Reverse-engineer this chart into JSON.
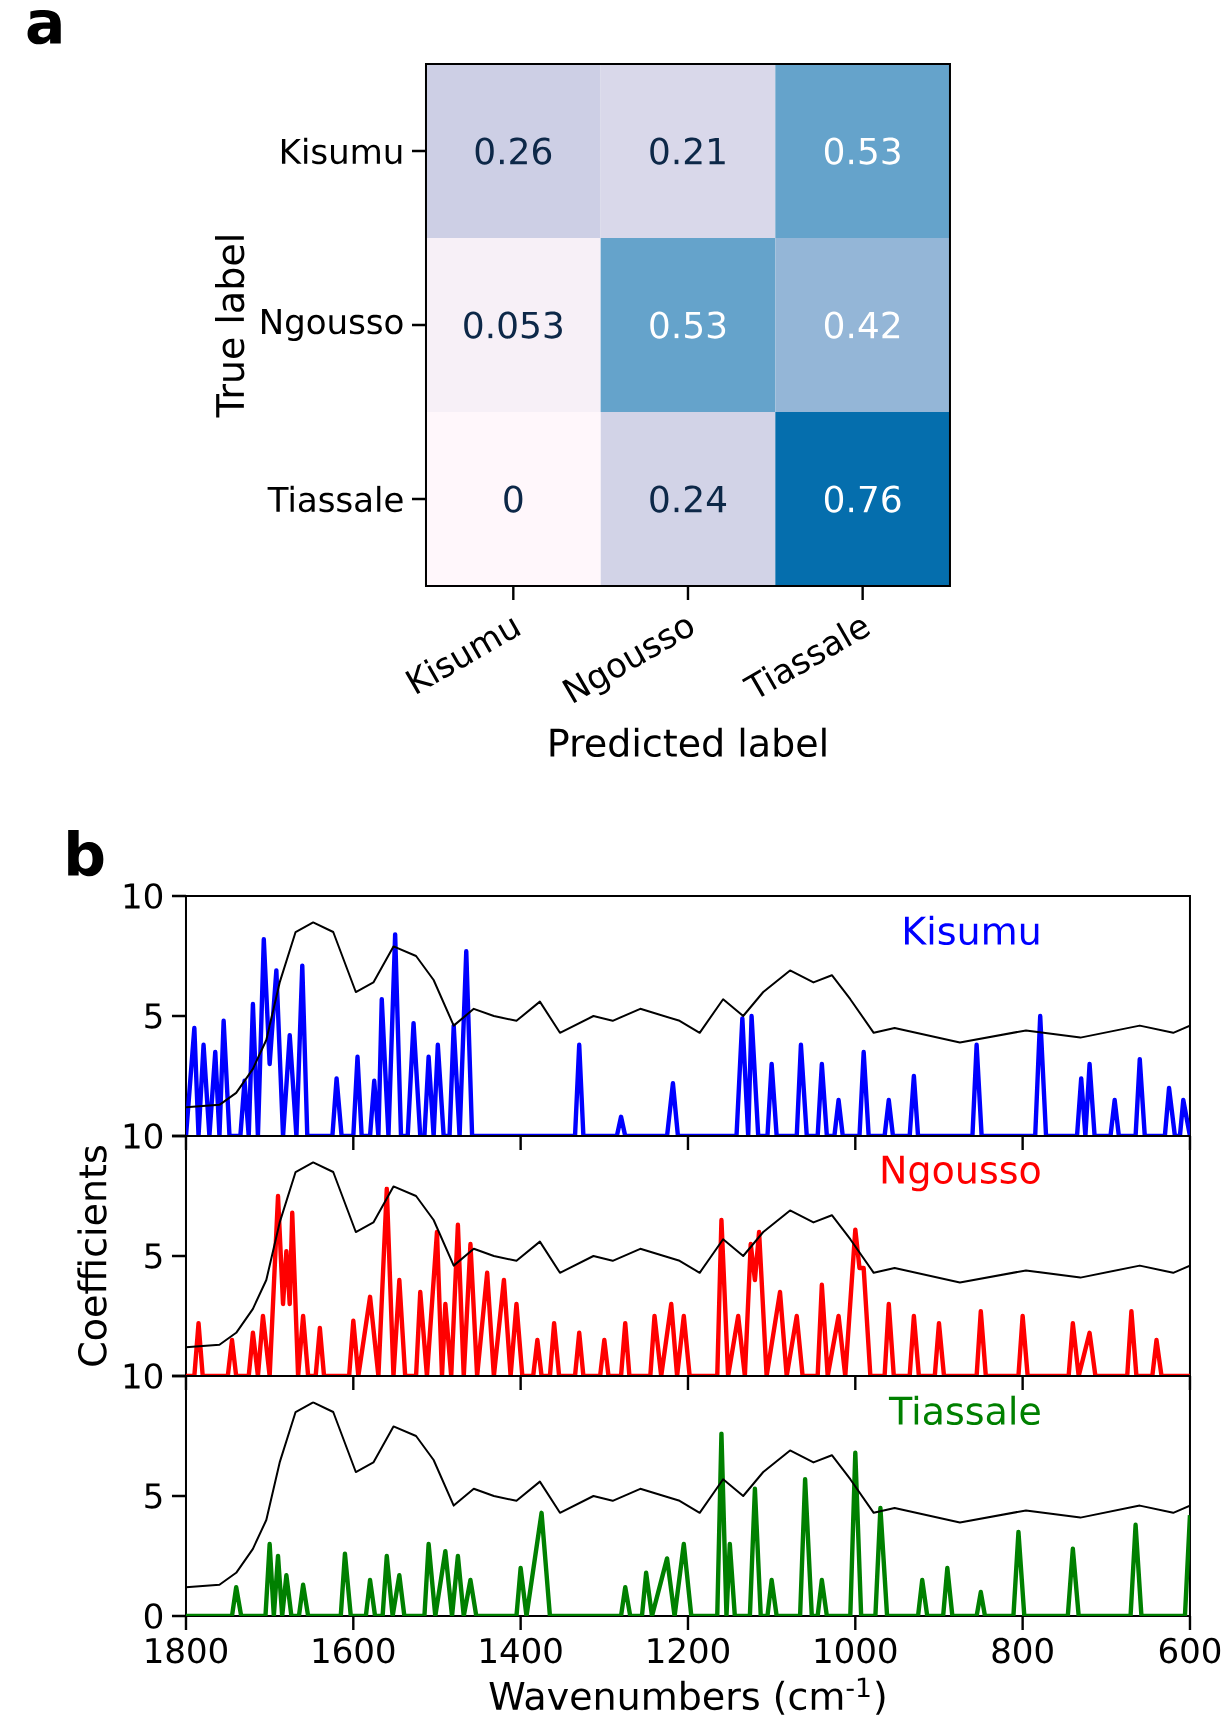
{
  "chart_data": [
    {
      "type": "heatmap",
      "title": "a",
      "xlabel": "Predicted label",
      "ylabel": "True label",
      "categories": [
        "Kisumu",
        "Ngousso",
        "Tiassale"
      ],
      "y_categories": [
        "Kisumu",
        "Ngousso",
        "Tiassale"
      ],
      "cells": [
        [
          0.26,
          0.21,
          0.53
        ],
        [
          0.053,
          0.53,
          0.42
        ],
        [
          0,
          0.24,
          0.76
        ]
      ],
      "data_labels": true
    },
    {
      "type": "line",
      "title": "b",
      "xlim": [
        1800,
        600
      ],
      "xticks": [
        1800,
        1600,
        1400,
        1200,
        1000,
        800,
        600
      ],
      "ylim": [
        0,
        10
      ],
      "yticks": [
        {
          "value": 0,
          "label": null
        },
        5,
        10
      ],
      "tick_labels": "y",
      "series": [
        {
          "name": "Kisumu",
          "color": "#0000ff",
          "x": [
            1800,
            1790,
            1785,
            1779,
            1772,
            1765,
            1760,
            1755,
            1748,
            1735,
            1730,
            1725,
            1720,
            1714,
            1707,
            1700,
            1692,
            1684,
            1676,
            1668,
            1661,
            1655,
            1625,
            1620,
            1614,
            1600,
            1595,
            1590,
            1580,
            1575,
            1570,
            1566,
            1558,
            1550,
            1543,
            1535,
            1528,
            1520,
            1515,
            1510,
            1504,
            1499,
            1492,
            1485,
            1480,
            1473,
            1465,
            1458,
            1335,
            1330,
            1325,
            1285,
            1280,
            1275,
            1225,
            1218,
            1212,
            1142,
            1135,
            1128,
            1124,
            1116,
            1105,
            1100,
            1094,
            1070,
            1065,
            1058,
            1045,
            1040,
            1034,
            1025,
            1020,
            1015,
            995,
            990,
            984,
            965,
            960,
            955,
            935,
            930,
            925,
            860,
            855,
            849,
            785,
            779,
            772,
            735,
            730,
            725,
            720,
            714,
            695,
            690,
            685,
            665,
            660,
            654,
            630,
            625,
            618,
            612,
            608,
            600
          ],
          "values": [
            0,
            4.5,
            0,
            3.8,
            0,
            3.5,
            0,
            4.8,
            0,
            0,
            2.3,
            0,
            5.5,
            0,
            8.2,
            3,
            6.9,
            0,
            4.2,
            0,
            7.1,
            0,
            0,
            2.4,
            0,
            0,
            3.3,
            0,
            0,
            2.3,
            0,
            5.7,
            0,
            8.4,
            0,
            0,
            4.7,
            0,
            0,
            3.3,
            0,
            3.8,
            0,
            0,
            4.6,
            0,
            7.7,
            0,
            0,
            3.8,
            0,
            0,
            0.8,
            0,
            0,
            2.2,
            0,
            0,
            4.9,
            0,
            5.0,
            0,
            0,
            3.0,
            0,
            0,
            3.8,
            0,
            0,
            3.0,
            0,
            0,
            1.5,
            0,
            0,
            3.5,
            0,
            0,
            1.5,
            0,
            0,
            2.5,
            0,
            0,
            3.8,
            0,
            0,
            5.0,
            0,
            0,
            2.4,
            0,
            3.0,
            0,
            0,
            1.5,
            0,
            0,
            3.2,
            0,
            0,
            2.0,
            0,
            0,
            1.5,
            0
          ]
        },
        {
          "color": "#000000",
          "x": [
            1800,
            1760,
            1740,
            1720,
            1704,
            1688,
            1669,
            1648,
            1624,
            1597,
            1576,
            1552,
            1525,
            1504,
            1480,
            1456,
            1432,
            1405,
            1377,
            1353,
            1313,
            1290,
            1257,
            1210,
            1186,
            1158,
            1134,
            1110,
            1078,
            1050,
            1028,
            1006,
            978,
            953,
            875,
            796,
            731,
            660,
            620,
            600
          ],
          "values": [
            1.2,
            1.3,
            1.8,
            2.8,
            4.0,
            6.4,
            8.5,
            8.9,
            8.5,
            6.0,
            6.4,
            7.9,
            7.5,
            6.5,
            4.6,
            5.3,
            5.0,
            4.8,
            5.6,
            4.3,
            5.0,
            4.8,
            5.3,
            4.8,
            4.3,
            5.7,
            5.0,
            6.0,
            6.9,
            6.4,
            6.7,
            5.7,
            4.3,
            4.5,
            3.9,
            4.4,
            4.1,
            4.6,
            4.3,
            4.6
          ]
        }
      ]
    },
    {
      "type": "line",
      "ylabel": "Coefficients",
      "xlim": [
        1800,
        600
      ],
      "xticks": [
        1800,
        1600,
        1400,
        1200,
        1000,
        800,
        600
      ],
      "ylim": [
        0,
        10
      ],
      "yticks": [
        {
          "value": 0,
          "label": null
        },
        5,
        10
      ],
      "tick_labels": "y",
      "series": [
        {
          "name": "Ngousso",
          "color": "#ff0000",
          "x": [
            1800,
            1790,
            1785,
            1780,
            1750,
            1745,
            1740,
            1725,
            1720,
            1714,
            1708,
            1700,
            1690,
            1684,
            1680,
            1676,
            1673,
            1666,
            1660,
            1654,
            1645,
            1640,
            1635,
            1605,
            1600,
            1594,
            1580,
            1570,
            1560,
            1552,
            1545,
            1538,
            1525,
            1520,
            1512,
            1500,
            1494,
            1490,
            1483,
            1475,
            1468,
            1460,
            1452,
            1440,
            1432,
            1420,
            1412,
            1405,
            1398,
            1385,
            1380,
            1375,
            1365,
            1360,
            1354,
            1335,
            1330,
            1325,
            1305,
            1300,
            1295,
            1280,
            1275,
            1270,
            1245,
            1240,
            1232,
            1220,
            1213,
            1205,
            1198,
            1165,
            1160,
            1152,
            1140,
            1132,
            1125,
            1120,
            1115,
            1106,
            1090,
            1082,
            1070,
            1063,
            1045,
            1040,
            1033,
            1020,
            1012,
            1000,
            995,
            990,
            982,
            965,
            960,
            954,
            935,
            930,
            924,
            905,
            900,
            894,
            855,
            850,
            844,
            805,
            800,
            794,
            745,
            740,
            733,
            720,
            713,
            675,
            670,
            664,
            645,
            640,
            634,
            600
          ],
          "values": [
            0,
            0,
            2.2,
            0,
            0,
            1.5,
            0,
            0,
            1.8,
            0,
            2.5,
            0,
            7.5,
            3,
            5.2,
            3,
            6.8,
            0,
            2.5,
            0,
            0,
            2.0,
            0,
            0,
            2.3,
            0,
            3.3,
            0,
            7.8,
            0,
            4.0,
            0,
            0,
            3.5,
            0,
            6.0,
            0,
            3.0,
            0,
            6.3,
            0,
            5.5,
            0,
            4.3,
            0,
            4.0,
            0,
            3.0,
            0,
            0,
            1.5,
            0,
            0,
            2.2,
            0,
            0,
            1.8,
            0,
            0,
            1.5,
            0,
            0,
            2.2,
            0,
            0,
            2.5,
            0,
            3.0,
            0,
            2.5,
            0,
            0,
            6.5,
            0,
            2.5,
            0,
            5.5,
            4,
            6.0,
            0,
            3.5,
            0,
            2.5,
            0,
            0,
            3.8,
            0,
            2.5,
            0,
            6.1,
            4.5,
            4.5,
            0,
            0,
            3.0,
            0,
            0,
            2.5,
            0,
            0,
            2.2,
            0,
            0,
            2.7,
            0,
            0,
            2.5,
            0,
            0,
            2.2,
            0,
            1.8,
            0,
            0,
            2.7,
            0,
            0,
            1.5,
            0,
            0
          ]
        },
        {
          "color": "#000000",
          "x": [
            1800,
            1760,
            1740,
            1720,
            1704,
            1688,
            1669,
            1648,
            1624,
            1597,
            1576,
            1552,
            1525,
            1504,
            1480,
            1456,
            1432,
            1405,
            1377,
            1353,
            1313,
            1290,
            1257,
            1210,
            1186,
            1158,
            1134,
            1110,
            1078,
            1050,
            1028,
            1006,
            978,
            953,
            875,
            796,
            731,
            660,
            620,
            600
          ],
          "values": [
            1.2,
            1.3,
            1.8,
            2.8,
            4.0,
            6.4,
            8.5,
            8.9,
            8.5,
            6.0,
            6.4,
            7.9,
            7.5,
            6.5,
            4.6,
            5.3,
            5.0,
            4.8,
            5.6,
            4.3,
            5.0,
            4.8,
            5.3,
            4.8,
            4.3,
            5.7,
            5.0,
            6.0,
            6.9,
            6.4,
            6.7,
            5.7,
            4.3,
            4.5,
            3.9,
            4.4,
            4.1,
            4.6,
            4.3,
            4.6
          ]
        }
      ]
    },
    {
      "type": "line",
      "xlabel": "Wavenumbers (cm$^{-1}$)",
      "xlim": [
        1800,
        600
      ],
      "xticks": [
        1800,
        1600,
        1400,
        1200,
        1000,
        800,
        600
      ],
      "ylim": [
        0,
        10
      ],
      "yticks": [
        0,
        5,
        10
      ],
      "series": [
        {
          "name": "Tiassale",
          "color": "#008000",
          "x": [
            1800,
            1745,
            1740,
            1734,
            1705,
            1700,
            1695,
            1690,
            1685,
            1680,
            1674,
            1665,
            1660,
            1654,
            1615,
            1610,
            1603,
            1585,
            1580,
            1574,
            1565,
            1560,
            1553,
            1545,
            1539,
            1515,
            1510,
            1502,
            1490,
            1482,
            1475,
            1468,
            1460,
            1453,
            1405,
            1400,
            1393,
            1375,
            1365,
            1280,
            1275,
            1269,
            1255,
            1250,
            1243,
            1225,
            1216,
            1205,
            1196,
            1165,
            1160,
            1154,
            1150,
            1144,
            1126,
            1120,
            1113,
            1105,
            1100,
            1094,
            1066,
            1060,
            1052,
            1045,
            1040,
            1034,
            1006,
            1000,
            993,
            976,
            970,
            962,
            925,
            920,
            914,
            895,
            890,
            884,
            855,
            850,
            845,
            811,
            805,
            798,
            746,
            740,
            733,
            671,
            665,
            658,
            606,
            600
          ],
          "values": [
            0,
            0,
            1.2,
            0,
            0,
            3.0,
            0,
            2.5,
            0,
            1.7,
            0,
            0,
            1.3,
            0,
            0,
            2.6,
            0,
            0,
            1.5,
            0,
            0,
            2.5,
            0,
            1.7,
            0,
            0,
            3.0,
            0,
            2.7,
            0,
            2.5,
            0,
            1.5,
            0,
            0,
            2.0,
            0,
            4.3,
            0,
            0,
            1.2,
            0,
            0,
            1.8,
            0,
            2.4,
            0,
            3.0,
            0,
            0,
            7.6,
            0,
            3.0,
            0,
            0,
            5.3,
            0,
            0,
            1.5,
            0,
            0,
            5.7,
            0,
            0,
            1.5,
            0,
            0,
            6.8,
            0,
            0,
            4.5,
            0,
            0,
            1.5,
            0,
            0,
            2.0,
            0,
            0,
            1.0,
            0,
            0,
            3.5,
            0,
            0,
            2.8,
            0,
            0,
            3.8,
            0,
            0,
            4.2
          ]
        },
        {
          "color": "#000000",
          "x": [
            1800,
            1760,
            1740,
            1720,
            1704,
            1688,
            1669,
            1648,
            1624,
            1597,
            1576,
            1552,
            1525,
            1504,
            1480,
            1456,
            1432,
            1405,
            1377,
            1353,
            1313,
            1290,
            1257,
            1210,
            1186,
            1158,
            1134,
            1110,
            1078,
            1050,
            1028,
            1006,
            978,
            953,
            875,
            796,
            731,
            660,
            620,
            600
          ],
          "values": [
            1.2,
            1.3,
            1.8,
            2.8,
            4.0,
            6.4,
            8.5,
            8.9,
            8.5,
            6.0,
            6.4,
            7.9,
            7.5,
            6.5,
            4.6,
            5.3,
            5.0,
            4.8,
            5.6,
            4.3,
            5.0,
            4.8,
            5.3,
            4.8,
            4.3,
            5.7,
            5.0,
            6.0,
            6.9,
            6.4,
            6.7,
            5.7,
            4.3,
            4.5,
            3.9,
            4.4,
            4.1,
            4.6,
            4.3,
            4.6
          ]
        }
      ]
    }
  ]
}
